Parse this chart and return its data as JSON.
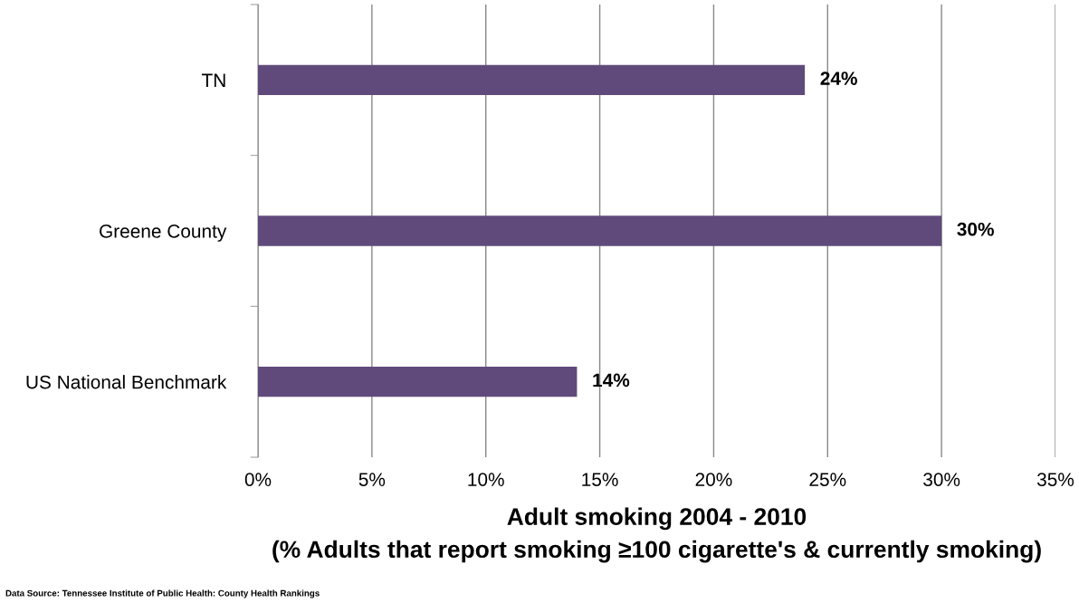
{
  "chart_data": {
    "type": "bar",
    "orientation": "horizontal",
    "categories": [
      "TN",
      "Greene County",
      "US National Benchmark"
    ],
    "values": [
      24,
      30,
      14
    ],
    "color": "#604a7b",
    "value_labels": [
      "24%",
      "30%",
      "14%"
    ],
    "xlabel": "Adult smoking 2004 - 2010\n(% Adults that report smoking ≥100 cigarette's & currently smoking)",
    "xlim": [
      0,
      35
    ],
    "xticks": [
      {
        "value": 0,
        "label": "0%"
      },
      {
        "value": 5,
        "label": "5%"
      },
      {
        "value": 10,
        "label": "10%"
      },
      {
        "value": 15,
        "label": "15%"
      },
      {
        "value": 20,
        "label": "20%"
      },
      {
        "value": 25,
        "label": "25%"
      },
      {
        "value": 30,
        "label": "30%"
      },
      {
        "value": 35,
        "label": "35%"
      }
    ],
    "grid": "x",
    "legend": false,
    "annotations": [
      "Data Source: Tennessee Institute of Public Health: County Health Rankings"
    ]
  }
}
